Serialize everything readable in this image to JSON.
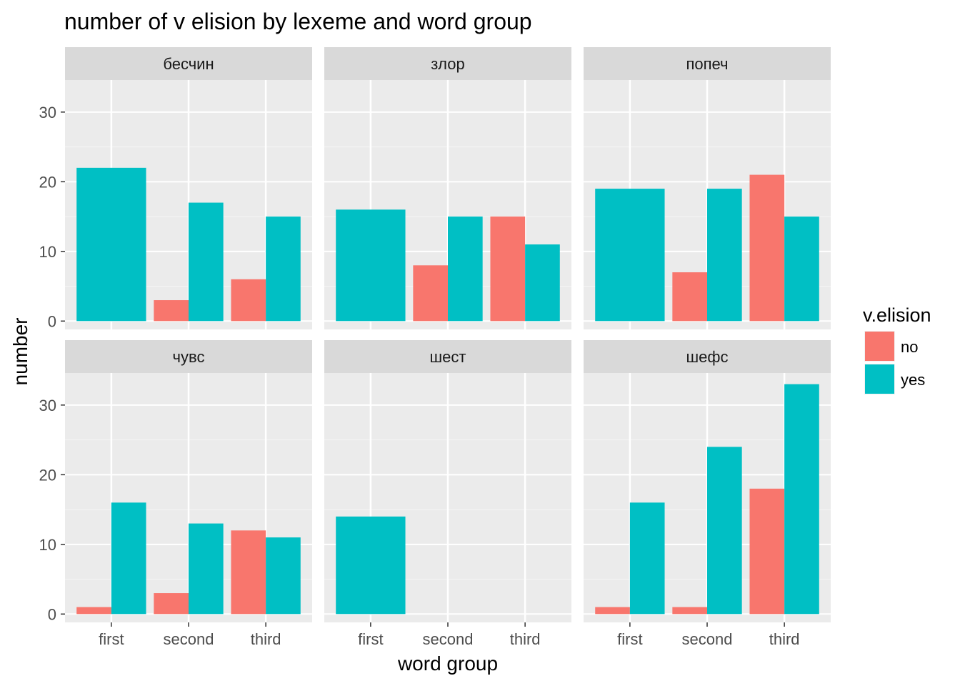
{
  "chart_data": {
    "type": "bar",
    "title": "number of v elision by lexeme and word group",
    "xlabel": "word group",
    "ylabel": "number",
    "categories": [
      "first",
      "second",
      "third"
    ],
    "ylim": [
      -1.2,
      34.6
    ],
    "yticks": [
      0,
      10,
      20,
      30
    ],
    "grid": true,
    "legend": {
      "title": "v.elision",
      "position": "right",
      "entries": [
        {
          "label": "no",
          "color": "#F8766D"
        },
        {
          "label": "yes",
          "color": "#00BFC4"
        }
      ]
    },
    "facets": [
      {
        "name": "бесчин",
        "series": [
          {
            "name": "no",
            "values": [
              0,
              3,
              6
            ]
          },
          {
            "name": "yes",
            "values": [
              22,
              17,
              15
            ]
          }
        ]
      },
      {
        "name": "злор",
        "series": [
          {
            "name": "no",
            "values": [
              0,
              8,
              15
            ]
          },
          {
            "name": "yes",
            "values": [
              16,
              15,
              11
            ]
          }
        ]
      },
      {
        "name": "попеч",
        "series": [
          {
            "name": "no",
            "values": [
              0,
              7,
              21
            ]
          },
          {
            "name": "yes",
            "values": [
              19,
              19,
              15
            ]
          }
        ]
      },
      {
        "name": "чувс",
        "series": [
          {
            "name": "no",
            "values": [
              1,
              3,
              12
            ]
          },
          {
            "name": "yes",
            "values": [
              16,
              13,
              11
            ]
          }
        ]
      },
      {
        "name": "шест",
        "series": [
          {
            "name": "no",
            "values": [
              0,
              0,
              0
            ]
          },
          {
            "name": "yes",
            "values": [
              14,
              0,
              0
            ]
          }
        ]
      },
      {
        "name": "шефс",
        "series": [
          {
            "name": "no",
            "values": [
              1,
              1,
              18
            ]
          },
          {
            "name": "yes",
            "values": [
              16,
              24,
              33
            ]
          }
        ]
      }
    ]
  }
}
